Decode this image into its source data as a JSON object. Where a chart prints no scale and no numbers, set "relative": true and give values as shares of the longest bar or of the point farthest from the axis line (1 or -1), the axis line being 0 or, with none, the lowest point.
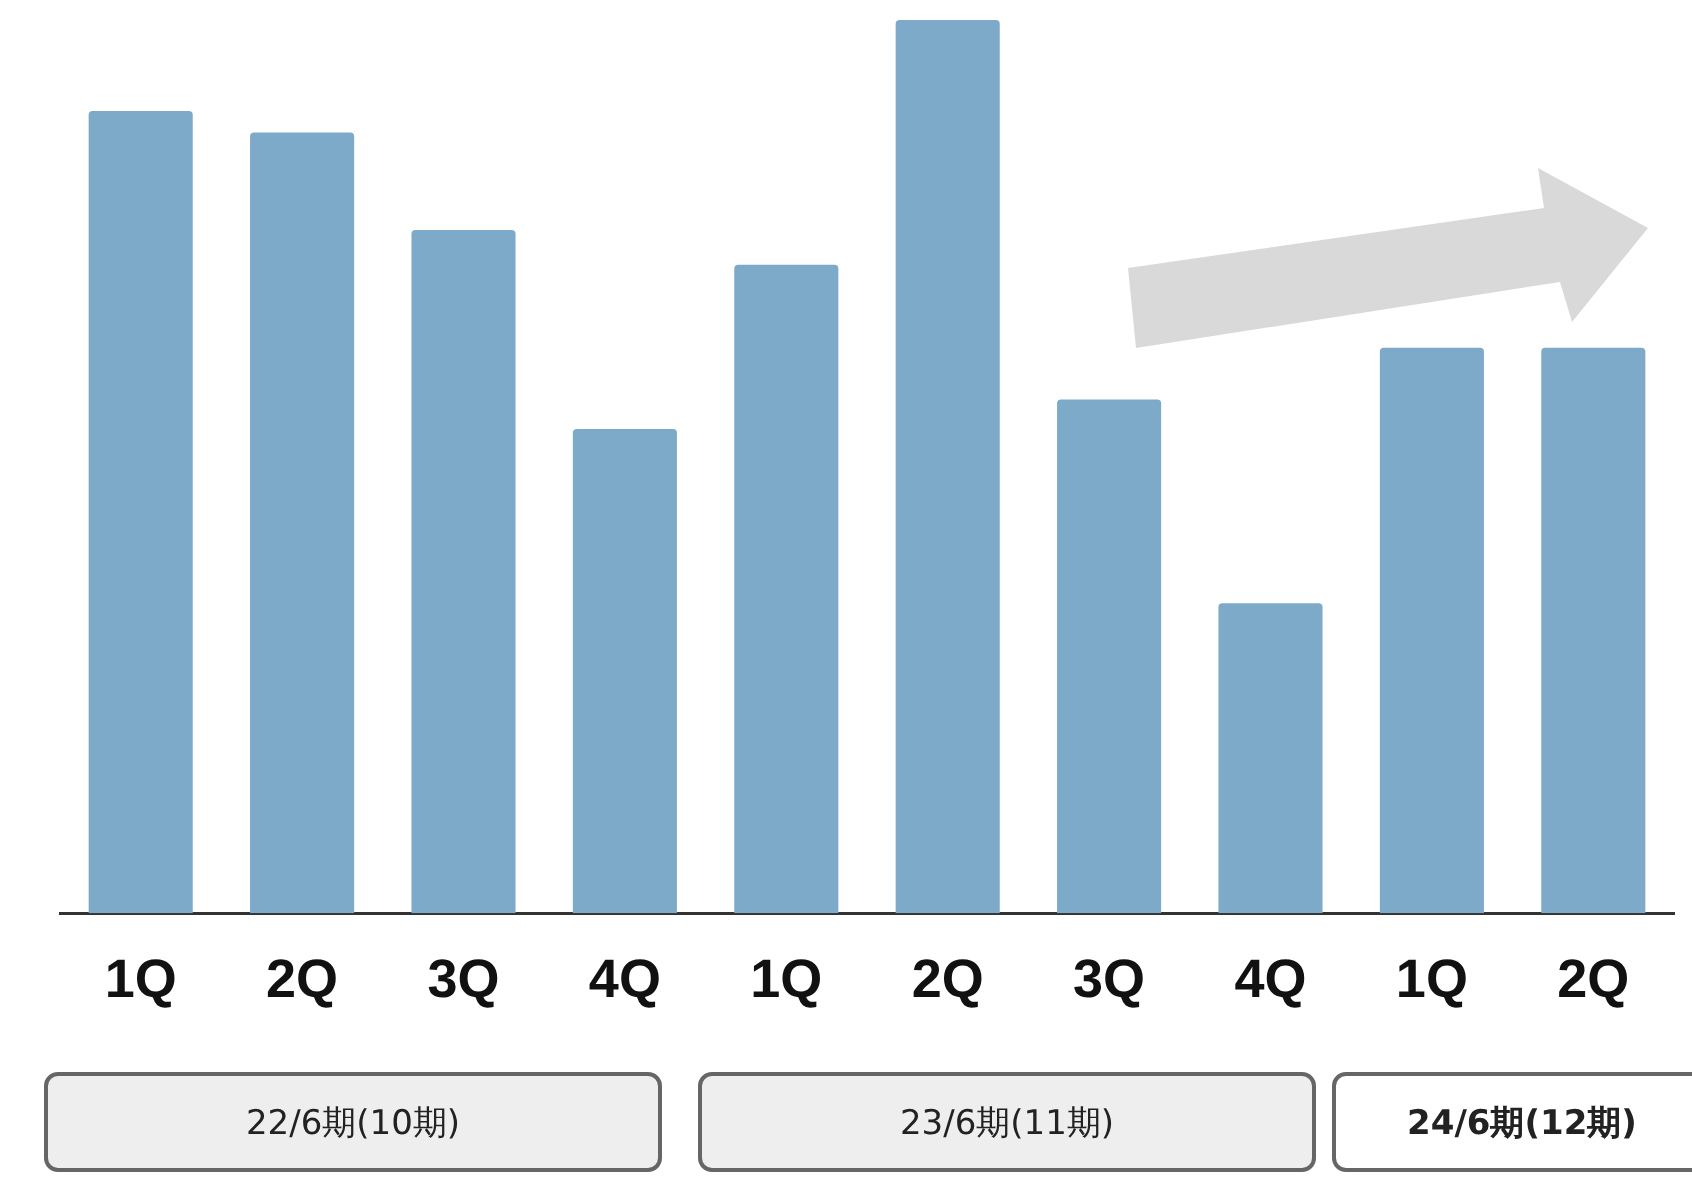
{
  "chart_data": {
    "type": "bar",
    "relative": true,
    "categories": [
      "1Q",
      "2Q",
      "3Q",
      "4Q",
      "1Q",
      "2Q",
      "3Q",
      "4Q",
      "1Q",
      "2Q"
    ],
    "values": [
      0.898,
      0.874,
      0.765,
      0.542,
      0.726,
      1,
      0.575,
      0.347,
      0.633,
      0.633
    ],
    "color": "#7eaaca",
    "grid": false,
    "legend": false,
    "annotations": [
      "22/6期(10期)",
      "23/6期(11期)",
      "24/6期(12期)"
    ]
  }
}
